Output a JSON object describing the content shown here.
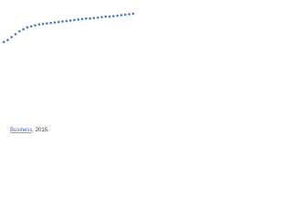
{
  "chart_data": {
    "type": "scatter",
    "categories": [
      null,
      null,
      null,
      null,
      null,
      null,
      null,
      null,
      null,
      null,
      null,
      null,
      null,
      null,
      null,
      null,
      null,
      null,
      null,
      null,
      null,
      null,
      null,
      null,
      null,
      null,
      null,
      null,
      null,
      null,
      null,
      null,
      null,
      null
    ],
    "series": [
      {
        "color": "#4a7ebb",
        "values": [
          30,
          32,
          35,
          38,
          41,
          43,
          45,
          46,
          47,
          48,
          48.5,
          49,
          49.5,
          50,
          50.5,
          51,
          51.5,
          52,
          52.5,
          53,
          53.5,
          54,
          54,
          54.5,
          55,
          55.5,
          56,
          56,
          56.5,
          57,
          57.5,
          58,
          58.5,
          59
        ]
      }
    ]
  },
  "caption": {
    "link": "Business",
    "text": ", 2015."
  }
}
